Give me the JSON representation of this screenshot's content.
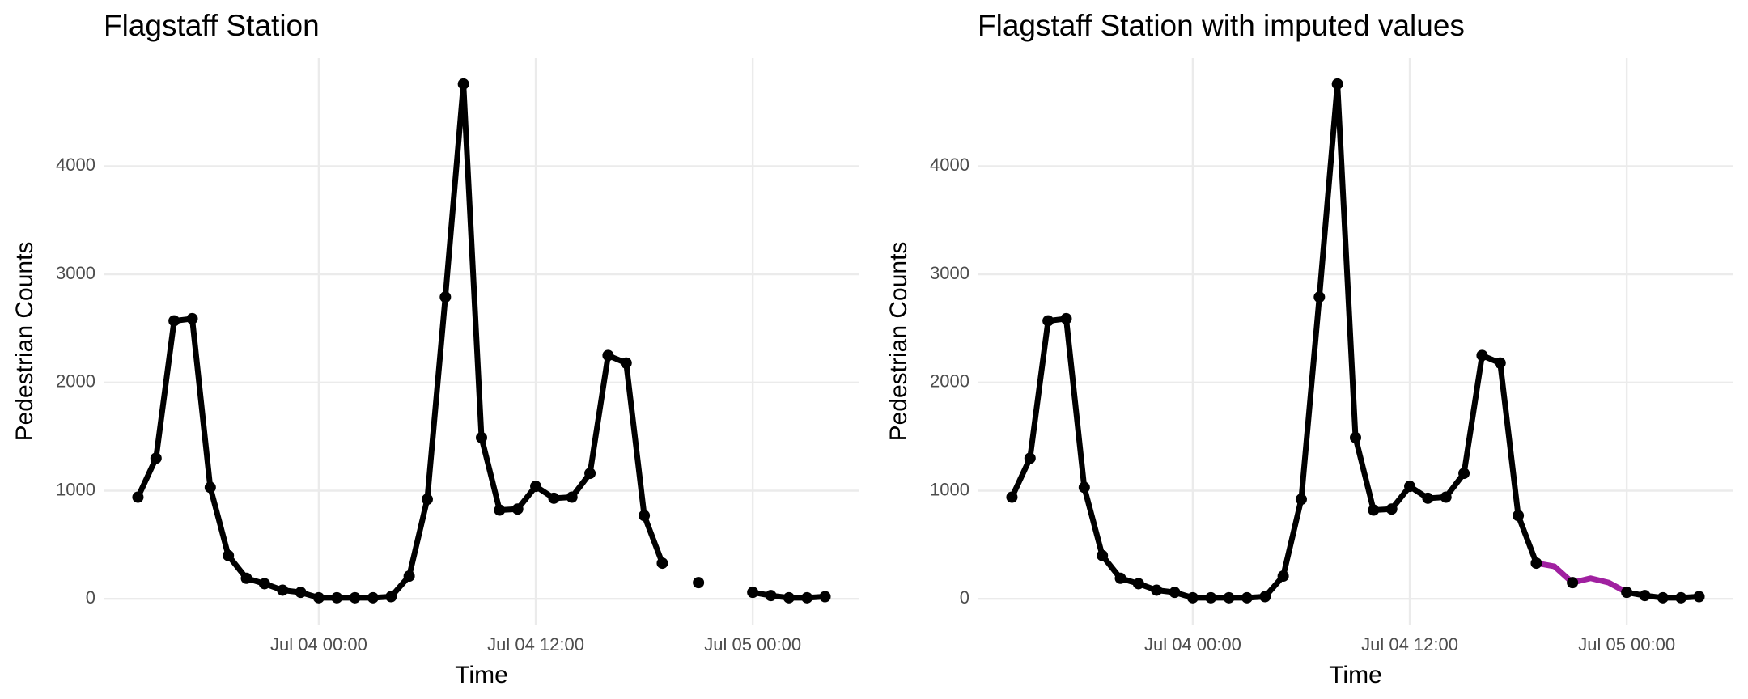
{
  "chart_data": [
    {
      "type": "line",
      "title": "Flagstaff Station",
      "x_label": "Time",
      "y_label": "Pedestrian Counts",
      "color": "#000000",
      "x": [
        "Jul 03 14:00",
        "Jul 03 15:00",
        "Jul 03 16:00",
        "Jul 03 17:00",
        "Jul 03 18:00",
        "Jul 03 19:00",
        "Jul 03 20:00",
        "Jul 03 21:00",
        "Jul 03 22:00",
        "Jul 03 23:00",
        "Jul 04 00:00",
        "Jul 04 01:00",
        "Jul 04 02:00",
        "Jul 04 03:00",
        "Jul 04 04:00",
        "Jul 04 05:00",
        "Jul 04 06:00",
        "Jul 04 07:00",
        "Jul 04 08:00",
        "Jul 04 09:00",
        "Jul 04 10:00",
        "Jul 04 11:00",
        "Jul 04 12:00",
        "Jul 04 13:00",
        "Jul 04 14:00",
        "Jul 04 15:00",
        "Jul 04 16:00",
        "Jul 04 17:00",
        "Jul 04 18:00",
        "Jul 04 19:00",
        "Jul 04 20:00",
        "Jul 04 21:00",
        "Jul 04 22:00",
        "Jul 04 23:00",
        "Jul 05 00:00",
        "Jul 05 01:00",
        "Jul 05 02:00",
        "Jul 05 03:00",
        "Jul 05 04:00"
      ],
      "values": [
        940,
        1300,
        2570,
        2590,
        1030,
        400,
        190,
        140,
        80,
        60,
        10,
        10,
        10,
        10,
        20,
        210,
        920,
        2790,
        4760,
        1490,
        820,
        830,
        1040,
        930,
        940,
        1160,
        2250,
        2180,
        770,
        330,
        null,
        150,
        null,
        null,
        60,
        30,
        10,
        10,
        20
      ],
      "xlim": [
        "Jul 03 12:06",
        "Jul 05 05:54"
      ],
      "xticks": [
        "Jul 04 00:00",
        "Jul 04 12:00",
        "Jul 05 00:00"
      ],
      "ylim": [
        -238,
        4998
      ],
      "yticks": [
        0,
        1000,
        2000,
        3000,
        4000
      ],
      "grid": true
    },
    {
      "type": "line",
      "title": "Flagstaff Station with imputed values",
      "x_label": "Time",
      "y_label": "Pedestrian Counts",
      "color": "#000000",
      "imputed_color": "#a020a0",
      "x": [
        "Jul 03 14:00",
        "Jul 03 15:00",
        "Jul 03 16:00",
        "Jul 03 17:00",
        "Jul 03 18:00",
        "Jul 03 19:00",
        "Jul 03 20:00",
        "Jul 03 21:00",
        "Jul 03 22:00",
        "Jul 03 23:00",
        "Jul 04 00:00",
        "Jul 04 01:00",
        "Jul 04 02:00",
        "Jul 04 03:00",
        "Jul 04 04:00",
        "Jul 04 05:00",
        "Jul 04 06:00",
        "Jul 04 07:00",
        "Jul 04 08:00",
        "Jul 04 09:00",
        "Jul 04 10:00",
        "Jul 04 11:00",
        "Jul 04 12:00",
        "Jul 04 13:00",
        "Jul 04 14:00",
        "Jul 04 15:00",
        "Jul 04 16:00",
        "Jul 04 17:00",
        "Jul 04 18:00",
        "Jul 04 19:00",
        "Jul 04 20:00",
        "Jul 04 21:00",
        "Jul 04 22:00",
        "Jul 04 23:00",
        "Jul 05 00:00",
        "Jul 05 01:00",
        "Jul 05 02:00",
        "Jul 05 03:00",
        "Jul 05 04:00"
      ],
      "values": [
        940,
        1300,
        2570,
        2590,
        1030,
        400,
        190,
        140,
        80,
        60,
        10,
        10,
        10,
        10,
        20,
        210,
        920,
        2790,
        4760,
        1490,
        820,
        830,
        1040,
        930,
        940,
        1160,
        2250,
        2180,
        770,
        330,
        300,
        150,
        190,
        150,
        60,
        30,
        10,
        10,
        20
      ],
      "imputed": [
        false,
        false,
        false,
        false,
        false,
        false,
        false,
        false,
        false,
        false,
        false,
        false,
        false,
        false,
        false,
        false,
        false,
        false,
        false,
        false,
        false,
        false,
        false,
        false,
        false,
        false,
        false,
        false,
        false,
        false,
        true,
        false,
        true,
        true,
        false,
        false,
        false,
        false,
        false
      ],
      "xlim": [
        "Jul 03 12:06",
        "Jul 05 05:54"
      ],
      "xticks": [
        "Jul 04 00:00",
        "Jul 04 12:00",
        "Jul 05 00:00"
      ],
      "ylim": [
        -238,
        4998
      ],
      "yticks": [
        0,
        1000,
        2000,
        3000,
        4000
      ],
      "grid": true
    }
  ]
}
